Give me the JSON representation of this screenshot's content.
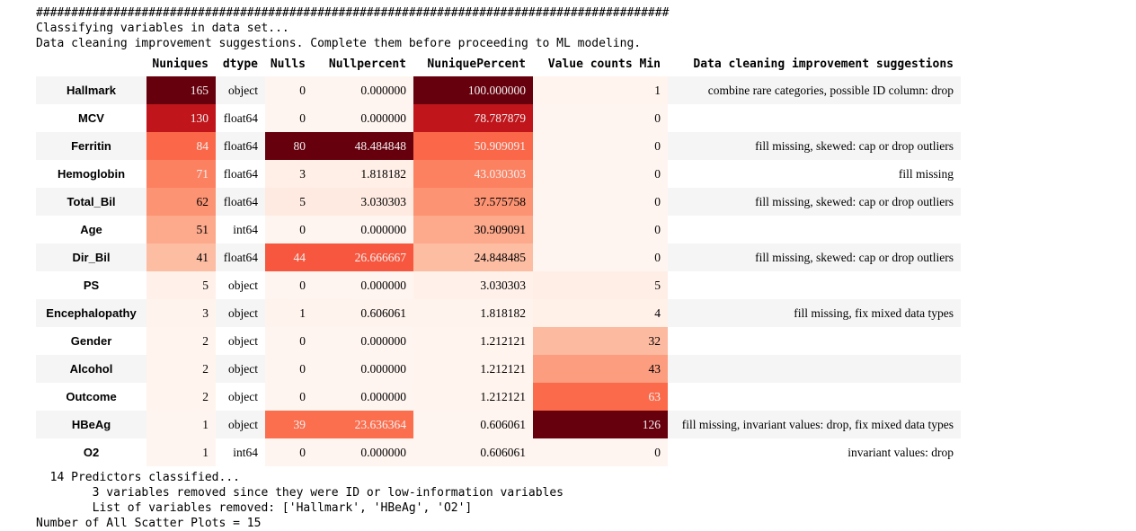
{
  "console": {
    "top_lines": [
      "##########################################################################################",
      "Classifying variables in data set...",
      "Data cleaning improvement suggestions. Complete them before proceeding to ML modeling."
    ],
    "bottom_lines": [
      "  14 Predictors classified...",
      "        3 variables removed since they were ID or low-information variables",
      "        List of variables removed: ['Hallmark', 'HBeAg', 'O2']",
      "Number of All Scatter Plots = 15"
    ]
  },
  "heatmap": {
    "colormap": "Reds",
    "min_color": "#fff5f0",
    "max_color": "#67000d",
    "light_text_color": "#f1f1f1",
    "stripe_color": "#f5f5f5"
  },
  "table": {
    "index_header": "",
    "columns": [
      "Nuniques",
      "dtype",
      "Nulls",
      "Nullpercent",
      "NuniquePercent",
      "Value counts Min",
      "Data cleaning improvement suggestions"
    ],
    "rows": [
      {
        "index": "Hallmark",
        "cells": [
          {
            "v": "165",
            "bg": "#67000d",
            "fg": "#f1f1f1"
          },
          {
            "v": "object"
          },
          {
            "v": "0",
            "bg": "#fff5f0"
          },
          {
            "v": "0.000000",
            "bg": "#fff5f0"
          },
          {
            "v": "100.000000",
            "bg": "#67000d",
            "fg": "#f1f1f1"
          },
          {
            "v": "1",
            "bg": "#fff4ee"
          },
          {
            "v": "combine rare categories, possible ID column: drop"
          }
        ]
      },
      {
        "index": "MCV",
        "cells": [
          {
            "v": "130",
            "bg": "#c0151b",
            "fg": "#f1f1f1"
          },
          {
            "v": "float64"
          },
          {
            "v": "0",
            "bg": "#fff5f0"
          },
          {
            "v": "0.000000",
            "bg": "#fff5f0"
          },
          {
            "v": "78.787879",
            "bg": "#c0151b",
            "fg": "#f1f1f1"
          },
          {
            "v": "0",
            "bg": "#fff5f0"
          },
          {
            "v": ""
          }
        ]
      },
      {
        "index": "Ferritin",
        "cells": [
          {
            "v": "84",
            "bg": "#fa6849",
            "fg": "#f1f1f1"
          },
          {
            "v": "float64"
          },
          {
            "v": "80",
            "bg": "#67000d",
            "fg": "#f1f1f1"
          },
          {
            "v": "48.484848",
            "bg": "#67000d",
            "fg": "#f1f1f1"
          },
          {
            "v": "50.909091",
            "bg": "#fa6849",
            "fg": "#f1f1f1"
          },
          {
            "v": "0",
            "bg": "#fff5f0"
          },
          {
            "v": "fill missing, skewed: cap or drop outliers"
          }
        ]
      },
      {
        "index": "Hemoglobin",
        "cells": [
          {
            "v": "71",
            "bg": "#fc8161",
            "fg": "#f1f1f1"
          },
          {
            "v": "float64"
          },
          {
            "v": "3",
            "bg": "#ffefe7"
          },
          {
            "v": "1.818182",
            "bg": "#ffefe7"
          },
          {
            "v": "43.030303",
            "bg": "#fc8161",
            "fg": "#f1f1f1"
          },
          {
            "v": "0",
            "bg": "#fff5f0"
          },
          {
            "v": "fill missing"
          }
        ]
      },
      {
        "index": "Total_Bil",
        "cells": [
          {
            "v": "62",
            "bg": "#fc9373"
          },
          {
            "v": "float64"
          },
          {
            "v": "5",
            "bg": "#feeae1"
          },
          {
            "v": "3.030303",
            "bg": "#feeae1"
          },
          {
            "v": "37.575758",
            "bg": "#fc9373"
          },
          {
            "v": "0",
            "bg": "#fff5f0"
          },
          {
            "v": "fill missing, skewed: cap or drop outliers"
          }
        ]
      },
      {
        "index": "Age",
        "cells": [
          {
            "v": "51",
            "bg": "#fca98c"
          },
          {
            "v": "int64"
          },
          {
            "v": "0",
            "bg": "#fff5f0"
          },
          {
            "v": "0.000000",
            "bg": "#fff5f0"
          },
          {
            "v": "30.909091",
            "bg": "#fca98c"
          },
          {
            "v": "0",
            "bg": "#fff5f0"
          },
          {
            "v": ""
          }
        ]
      },
      {
        "index": "Dir_Bil",
        "cells": [
          {
            "v": "41",
            "bg": "#fcbda3"
          },
          {
            "v": "float64"
          },
          {
            "v": "44",
            "bg": "#f6573e",
            "fg": "#f1f1f1"
          },
          {
            "v": "26.666667",
            "bg": "#f6573e",
            "fg": "#f1f1f1"
          },
          {
            "v": "24.848485",
            "bg": "#fcbda3"
          },
          {
            "v": "0",
            "bg": "#fff5f0"
          },
          {
            "v": "fill missing, skewed: cap or drop outliers"
          }
        ]
      },
      {
        "index": "PS",
        "cells": [
          {
            "v": "5",
            "bg": "#fff1ea"
          },
          {
            "v": "object"
          },
          {
            "v": "0",
            "bg": "#fff5f0"
          },
          {
            "v": "0.000000",
            "bg": "#fff5f0"
          },
          {
            "v": "3.030303",
            "bg": "#fff1ea"
          },
          {
            "v": "5",
            "bg": "#ffeee6"
          },
          {
            "v": ""
          }
        ]
      },
      {
        "index": "Encephalopathy",
        "cells": [
          {
            "v": "3",
            "bg": "#fff3ed"
          },
          {
            "v": "object"
          },
          {
            "v": "1",
            "bg": "#fff3ed"
          },
          {
            "v": "0.606061",
            "bg": "#fff3ed"
          },
          {
            "v": "1.818182",
            "bg": "#fff3ed"
          },
          {
            "v": "4",
            "bg": "#fff0e8"
          },
          {
            "v": "fill missing, fix mixed data types"
          }
        ]
      },
      {
        "index": "Gender",
        "cells": [
          {
            "v": "2",
            "bg": "#fff4ee"
          },
          {
            "v": "object"
          },
          {
            "v": "0",
            "bg": "#fff5f0"
          },
          {
            "v": "0.000000",
            "bg": "#fff5f0"
          },
          {
            "v": "1.212121",
            "bg": "#fff4ee"
          },
          {
            "v": "32",
            "bg": "#fcbaa0"
          },
          {
            "v": ""
          }
        ]
      },
      {
        "index": "Alcohol",
        "cells": [
          {
            "v": "2",
            "bg": "#fff4ee"
          },
          {
            "v": "object"
          },
          {
            "v": "0",
            "bg": "#fff5f0"
          },
          {
            "v": "0.000000",
            "bg": "#fff5f0"
          },
          {
            "v": "1.212121",
            "bg": "#fff4ee"
          },
          {
            "v": "43",
            "bg": "#fc9d7f"
          },
          {
            "v": ""
          }
        ]
      },
      {
        "index": "Outcome",
        "cells": [
          {
            "v": "2",
            "bg": "#fff4ee"
          },
          {
            "v": "object"
          },
          {
            "v": "0",
            "bg": "#fff5f0"
          },
          {
            "v": "0.000000",
            "bg": "#fff5f0"
          },
          {
            "v": "1.212121",
            "bg": "#fff4ee"
          },
          {
            "v": "63",
            "bg": "#fb6a4a",
            "fg": "#f1f1f1"
          },
          {
            "v": ""
          }
        ]
      },
      {
        "index": "HBeAg",
        "cells": [
          {
            "v": "1",
            "bg": "#fff5f0"
          },
          {
            "v": "object"
          },
          {
            "v": "39",
            "bg": "#fb6e4e",
            "fg": "#f1f1f1"
          },
          {
            "v": "23.636364",
            "bg": "#fb6e4e",
            "fg": "#f1f1f1"
          },
          {
            "v": "0.606061",
            "bg": "#fff5f0"
          },
          {
            "v": "126",
            "bg": "#67000d",
            "fg": "#f1f1f1"
          },
          {
            "v": "fill missing, invariant values: drop, fix mixed data types"
          }
        ]
      },
      {
        "index": "O2",
        "cells": [
          {
            "v": "1",
            "bg": "#fff5f0"
          },
          {
            "v": "int64"
          },
          {
            "v": "0",
            "bg": "#fff5f0"
          },
          {
            "v": "0.000000",
            "bg": "#fff5f0"
          },
          {
            "v": "0.606061",
            "bg": "#fff5f0"
          },
          {
            "v": "0",
            "bg": "#fff5f0"
          },
          {
            "v": "invariant values: drop"
          }
        ]
      }
    ]
  }
}
